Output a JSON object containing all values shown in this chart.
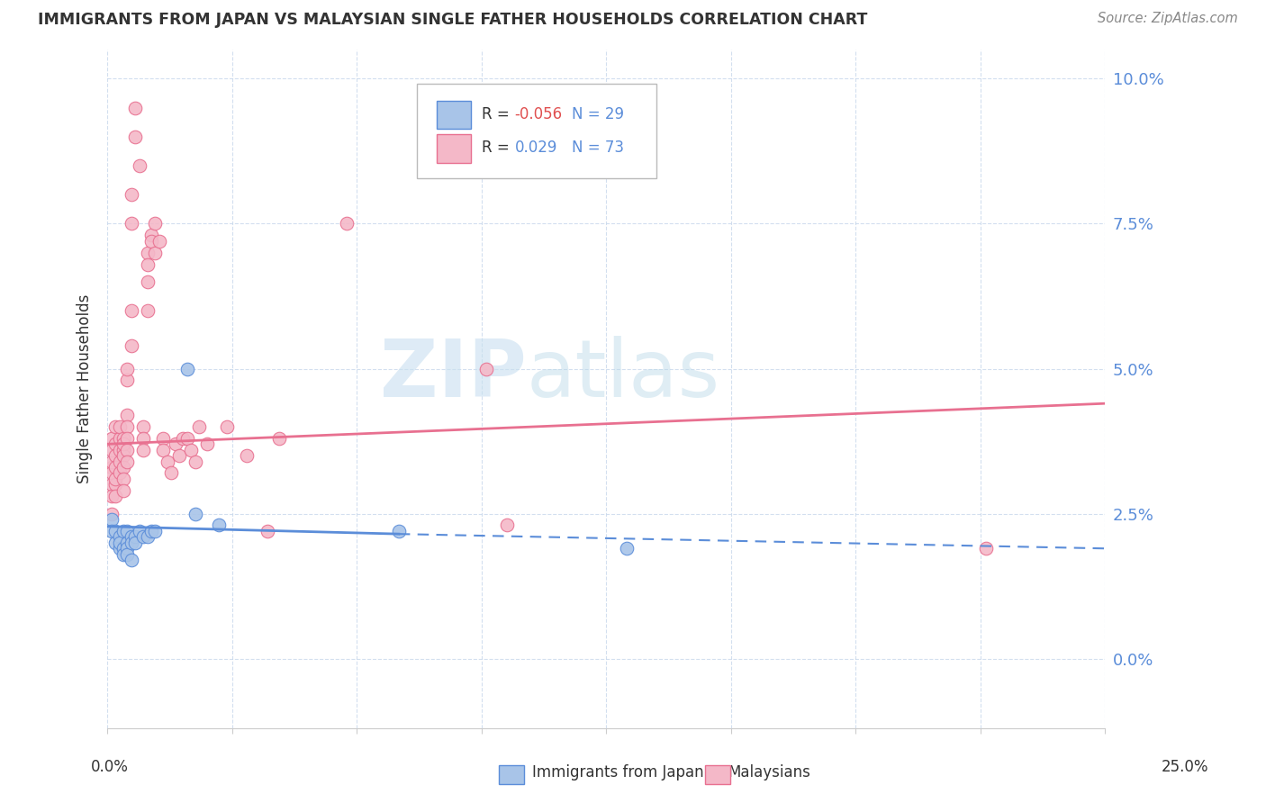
{
  "title": "IMMIGRANTS FROM JAPAN VS MALAYSIAN SINGLE FATHER HOUSEHOLDS CORRELATION CHART",
  "source": "Source: ZipAtlas.com",
  "ylabel": "Single Father Households",
  "xlim": [
    0.0,
    0.25
  ],
  "ylim": [
    -0.012,
    0.105
  ],
  "yticks": [
    0.0,
    0.025,
    0.05,
    0.075,
    0.1
  ],
  "xticks": [
    0.0,
    0.03125,
    0.0625,
    0.09375,
    0.125,
    0.15625,
    0.1875,
    0.21875,
    0.25
  ],
  "color_japan": "#a8c4e8",
  "color_malaysia": "#f4b8c8",
  "color_japan_line": "#5b8dd9",
  "color_malaysia_line": "#e87090",
  "watermark_zip": "ZIP",
  "watermark_atlas": "atlas",
  "japan_points": [
    [
      0.001,
      0.024
    ],
    [
      0.001,
      0.022
    ],
    [
      0.002,
      0.022
    ],
    [
      0.002,
      0.02
    ],
    [
      0.003,
      0.021
    ],
    [
      0.003,
      0.019
    ],
    [
      0.003,
      0.02
    ],
    [
      0.004,
      0.022
    ],
    [
      0.004,
      0.019
    ],
    [
      0.004,
      0.018
    ],
    [
      0.005,
      0.022
    ],
    [
      0.005,
      0.02
    ],
    [
      0.005,
      0.019
    ],
    [
      0.005,
      0.018
    ],
    [
      0.006,
      0.021
    ],
    [
      0.006,
      0.02
    ],
    [
      0.006,
      0.017
    ],
    [
      0.007,
      0.021
    ],
    [
      0.007,
      0.02
    ],
    [
      0.008,
      0.022
    ],
    [
      0.009,
      0.021
    ],
    [
      0.01,
      0.021
    ],
    [
      0.011,
      0.022
    ],
    [
      0.012,
      0.022
    ],
    [
      0.02,
      0.05
    ],
    [
      0.022,
      0.025
    ],
    [
      0.028,
      0.023
    ],
    [
      0.073,
      0.022
    ],
    [
      0.13,
      0.019
    ]
  ],
  "malaysia_points": [
    [
      0.001,
      0.033
    ],
    [
      0.001,
      0.03
    ],
    [
      0.001,
      0.028
    ],
    [
      0.001,
      0.025
    ],
    [
      0.001,
      0.032
    ],
    [
      0.001,
      0.034
    ],
    [
      0.001,
      0.036
    ],
    [
      0.001,
      0.038
    ],
    [
      0.002,
      0.04
    ],
    [
      0.002,
      0.037
    ],
    [
      0.002,
      0.035
    ],
    [
      0.002,
      0.033
    ],
    [
      0.002,
      0.03
    ],
    [
      0.002,
      0.028
    ],
    [
      0.002,
      0.031
    ],
    [
      0.003,
      0.036
    ],
    [
      0.003,
      0.034
    ],
    [
      0.003,
      0.038
    ],
    [
      0.003,
      0.032
    ],
    [
      0.003,
      0.04
    ],
    [
      0.004,
      0.038
    ],
    [
      0.004,
      0.036
    ],
    [
      0.004,
      0.035
    ],
    [
      0.004,
      0.033
    ],
    [
      0.004,
      0.031
    ],
    [
      0.004,
      0.029
    ],
    [
      0.004,
      0.037
    ],
    [
      0.005,
      0.042
    ],
    [
      0.005,
      0.04
    ],
    [
      0.005,
      0.038
    ],
    [
      0.005,
      0.036
    ],
    [
      0.005,
      0.034
    ],
    [
      0.005,
      0.048
    ],
    [
      0.005,
      0.05
    ],
    [
      0.006,
      0.054
    ],
    [
      0.006,
      0.06
    ],
    [
      0.006,
      0.075
    ],
    [
      0.006,
      0.08
    ],
    [
      0.007,
      0.09
    ],
    [
      0.007,
      0.095
    ],
    [
      0.008,
      0.085
    ],
    [
      0.009,
      0.04
    ],
    [
      0.009,
      0.038
    ],
    [
      0.009,
      0.036
    ],
    [
      0.01,
      0.07
    ],
    [
      0.01,
      0.065
    ],
    [
      0.01,
      0.06
    ],
    [
      0.01,
      0.068
    ],
    [
      0.011,
      0.073
    ],
    [
      0.011,
      0.072
    ],
    [
      0.012,
      0.07
    ],
    [
      0.012,
      0.075
    ],
    [
      0.013,
      0.072
    ],
    [
      0.014,
      0.038
    ],
    [
      0.014,
      0.036
    ],
    [
      0.015,
      0.034
    ],
    [
      0.016,
      0.032
    ],
    [
      0.017,
      0.037
    ],
    [
      0.018,
      0.035
    ],
    [
      0.019,
      0.038
    ],
    [
      0.02,
      0.038
    ],
    [
      0.021,
      0.036
    ],
    [
      0.022,
      0.034
    ],
    [
      0.023,
      0.04
    ],
    [
      0.025,
      0.037
    ],
    [
      0.03,
      0.04
    ],
    [
      0.035,
      0.035
    ],
    [
      0.04,
      0.022
    ],
    [
      0.043,
      0.038
    ],
    [
      0.06,
      0.075
    ],
    [
      0.1,
      0.023
    ],
    [
      0.22,
      0.019
    ],
    [
      0.095,
      0.05
    ]
  ],
  "japan_trend_x": [
    0.0,
    0.073,
    0.25
  ],
  "japan_trend_y": [
    0.0228,
    0.0215,
    0.019
  ],
  "malaysia_trend_x": [
    0.0,
    0.25
  ],
  "malaysia_trend_y": [
    0.037,
    0.044
  ]
}
